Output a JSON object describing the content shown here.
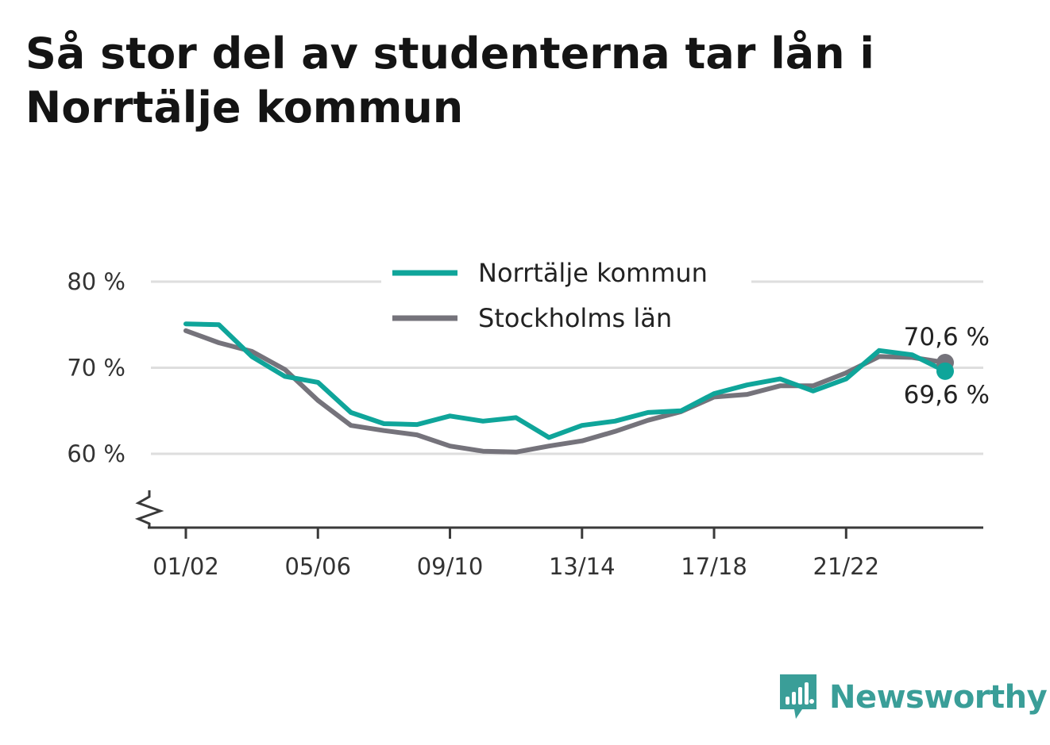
{
  "title": "Så stor del av studenterna tar lån i Norrtälje kommun",
  "brand": {
    "name": "Newsworthy",
    "color": "#3a9e98",
    "icon": "bar-chart-speech-bubble-icon"
  },
  "chart_data": {
    "type": "line",
    "title": "Så stor del av studenterna tar lån i Norrtälje kommun",
    "xlabel": "",
    "ylabel": "",
    "x": [
      "01/02",
      "02/03",
      "03/04",
      "04/05",
      "05/06",
      "06/07",
      "07/08",
      "08/09",
      "09/10",
      "10/11",
      "11/12",
      "12/13",
      "13/14",
      "14/15",
      "15/16",
      "16/17",
      "17/18",
      "18/19",
      "19/20",
      "20/21",
      "21/22",
      "22/23",
      "23/24",
      "24/25"
    ],
    "x_tick_labels": [
      "01/02",
      "05/06",
      "09/10",
      "13/14",
      "17/18",
      "21/22"
    ],
    "y_ticks": [
      60,
      70,
      80
    ],
    "y_tick_labels": [
      "60 %",
      "70 %",
      "80 %"
    ],
    "ylim": [
      51.5,
      82
    ],
    "y_axis_break": true,
    "grid": true,
    "legend_position": "top-center",
    "series": [
      {
        "name": "Norrtälje kommun",
        "color": "#0fa59a",
        "values": [
          75.1,
          75.0,
          71.3,
          69.0,
          68.3,
          64.8,
          63.5,
          63.4,
          64.4,
          63.8,
          64.2,
          61.9,
          63.3,
          63.8,
          64.8,
          65.0,
          67.0,
          68.0,
          68.7,
          67.3,
          68.7,
          72.0,
          71.5,
          69.6
        ],
        "end_label": "69,6 %"
      },
      {
        "name": "Stockholms län",
        "color": "#75737b",
        "values": [
          74.3,
          72.9,
          71.9,
          69.8,
          66.2,
          63.3,
          62.7,
          62.2,
          60.9,
          60.3,
          60.2,
          60.9,
          61.5,
          62.6,
          63.9,
          64.9,
          66.6,
          66.9,
          67.9,
          67.9,
          69.4,
          71.3,
          71.2,
          70.6
        ],
        "end_label": "70,6 %"
      }
    ]
  }
}
